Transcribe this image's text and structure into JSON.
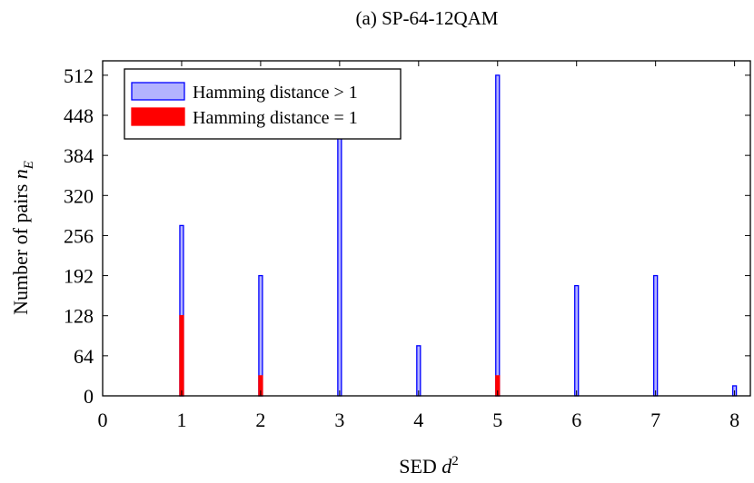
{
  "chart_data": {
    "type": "bar",
    "title": "(a) SP-64-12QAM",
    "xlabel_text": "SED ",
    "xlabel_math": "d",
    "xlabel_sup": "2",
    "ylabel_text": "Number of pairs ",
    "ylabel_math": "n",
    "ylabel_sub": "E",
    "xlim": [
      0,
      8.2
    ],
    "ylim": [
      0,
      535
    ],
    "xticks": [
      0,
      1,
      2,
      3,
      4,
      5,
      6,
      7,
      8
    ],
    "yticks": [
      0,
      64,
      128,
      192,
      256,
      320,
      384,
      448,
      512
    ],
    "series": [
      {
        "name": "Hamming distance > 1",
        "color": "#0000ff",
        "fill": "#b3b3ff",
        "x": [
          1,
          2,
          3,
          4,
          5,
          6,
          7,
          8
        ],
        "values": [
          272,
          192,
          420,
          80,
          512,
          176,
          192,
          16
        ]
      },
      {
        "name": "Hamming distance = 1",
        "color": "#ff0000",
        "fill": "#ff0000",
        "x": [
          1,
          2,
          3,
          4,
          5,
          6,
          7,
          8
        ],
        "values": [
          128,
          32,
          0,
          0,
          32,
          0,
          0,
          0
        ]
      }
    ],
    "legend_position": "top-left",
    "grid": false
  }
}
